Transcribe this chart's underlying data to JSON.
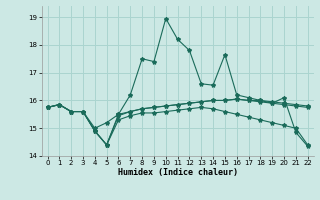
{
  "xlabel": "Humidex (Indice chaleur)",
  "bg_color": "#cce8e4",
  "grid_color": "#aad4cf",
  "line_color": "#1a6b5a",
  "xlim": [
    -0.5,
    22.5
  ],
  "ylim": [
    14.0,
    19.4
  ],
  "yticks": [
    14,
    15,
    16,
    17,
    18,
    19
  ],
  "xticks": [
    0,
    1,
    2,
    3,
    4,
    5,
    6,
    7,
    8,
    9,
    10,
    11,
    12,
    13,
    14,
    15,
    16,
    17,
    18,
    19,
    20,
    21,
    22
  ],
  "line1": [
    15.75,
    15.85,
    15.6,
    15.6,
    14.9,
    14.4,
    15.3,
    15.45,
    15.55,
    15.55,
    15.6,
    15.65,
    15.7,
    15.75,
    15.7,
    15.6,
    15.5,
    15.4,
    15.3,
    15.2,
    15.1,
    15.0,
    14.4
  ],
  "line2": [
    15.75,
    15.85,
    15.6,
    15.6,
    14.9,
    14.4,
    15.5,
    16.2,
    17.5,
    17.4,
    18.95,
    18.2,
    17.8,
    16.6,
    16.55,
    17.65,
    16.2,
    16.1,
    16.0,
    15.9,
    16.1,
    14.85,
    14.35
  ],
  "line3": [
    15.75,
    15.85,
    15.6,
    15.6,
    15.0,
    15.2,
    15.5,
    15.6,
    15.7,
    15.75,
    15.8,
    15.85,
    15.9,
    15.95,
    16.0,
    16.0,
    16.05,
    16.0,
    15.95,
    15.9,
    15.85,
    15.8,
    15.75
  ],
  "line4": [
    15.75,
    15.85,
    15.6,
    15.6,
    14.9,
    14.4,
    15.45,
    15.6,
    15.7,
    15.75,
    15.8,
    15.85,
    15.9,
    15.95,
    16.0,
    16.0,
    16.05,
    16.0,
    16.0,
    15.95,
    15.9,
    15.85,
    15.8
  ]
}
